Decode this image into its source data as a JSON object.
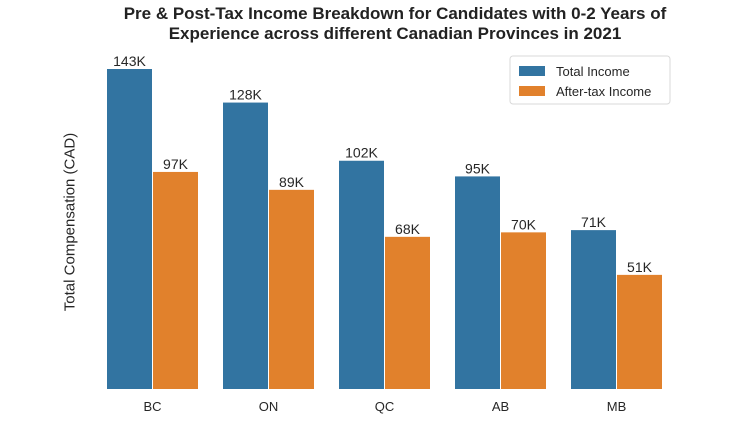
{
  "chart_data": {
    "type": "bar",
    "title": "Pre & Post-Tax Income Breakdown for Candidates with 0-2 Years of\nExperience across different Canadian Provinces in 2021",
    "xlabel": "",
    "ylabel": "Total Compensation (CAD)",
    "categories": [
      "BC",
      "ON",
      "QC",
      "AB",
      "MB"
    ],
    "series": [
      {
        "name": "Total Income",
        "values": [
          143,
          128,
          102,
          95,
          71
        ],
        "labels": [
          "143K",
          "128K",
          "102K",
          "95K",
          "71K"
        ],
        "color": "#3274a1"
      },
      {
        "name": "After-tax Income",
        "values": [
          97,
          89,
          68,
          70,
          51
        ],
        "labels": [
          "97K",
          "89K",
          "68K",
          "70K",
          "51K"
        ],
        "color": "#e1812c"
      }
    ],
    "ylim": [
      0,
      150
    ],
    "grid": false,
    "legend_position": "top-right"
  }
}
